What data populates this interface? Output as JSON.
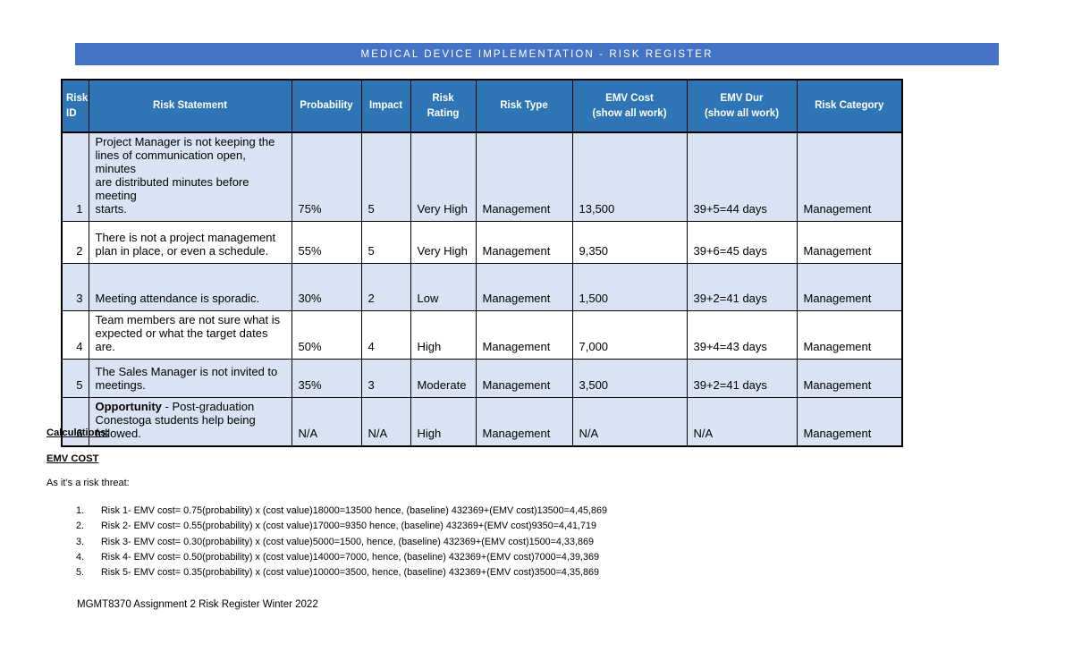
{
  "banner": {
    "title": "MEDICAL DEVICE IMPLEMENTATION - RISK REGISTER"
  },
  "table": {
    "columns": [
      {
        "key": "risk-id",
        "label": "Risk\nID"
      },
      {
        "key": "risk-statement",
        "label": "Risk Statement"
      },
      {
        "key": "probability",
        "label": "Probability"
      },
      {
        "key": "impact",
        "label": "Impact"
      },
      {
        "key": "risk-rating",
        "label": "Risk\nRating"
      },
      {
        "key": "risk-type",
        "label": "Risk Type"
      },
      {
        "key": "emv-cost",
        "label": "EMV Cost\n(show all work)"
      },
      {
        "key": "emv-dur",
        "label": "EMV Dur\n(show all work)"
      },
      {
        "key": "risk-category",
        "label": "Risk Category"
      }
    ],
    "rows": [
      {
        "id": "1",
        "statement": "Project Manager is not keeping the\nlines of communication open, minutes\nare distributed minutes before meeting\nstarts.",
        "statement_bold": "",
        "probability": "75%",
        "impact": "5",
        "rating": "Very High",
        "type": "Management",
        "emv_cost": "13,500",
        "emv_dur": "39+5=44 days",
        "category": "Management"
      },
      {
        "id": "2",
        "statement": "There is not a project management\nplan in place, or even a schedule.",
        "statement_bold": "",
        "probability": "55%",
        "impact": "5",
        "rating": "Very High",
        "type": "Management",
        "emv_cost": "9,350",
        "emv_dur": "39+6=45 days",
        "category": "Management"
      },
      {
        "id": "3",
        "statement": "Meeting attendance is sporadic.",
        "statement_bold": "",
        "probability": "30%",
        "impact": "2",
        "rating": "Low",
        "type": "Management",
        "emv_cost": "1,500",
        "emv_dur": "39+2=41 days",
        "category": "Management"
      },
      {
        "id": "4",
        "statement": "Team members are not sure what is\nexpected or what the target dates are.",
        "statement_bold": "",
        "probability": "50%",
        "impact": "4",
        "rating": "High",
        "type": "Management",
        "emv_cost": "7,000",
        "emv_dur": "39+4=43 days",
        "category": "Management"
      },
      {
        "id": "5",
        "statement": "The Sales Manager is not invited to\nmeetings.",
        "statement_bold": "",
        "probability": "35%",
        "impact": "3",
        "rating": "Moderate",
        "type": "Management",
        "emv_cost": "3,500",
        "emv_dur": "39+2=41 days",
        "category": "Management"
      },
      {
        "id": "6",
        "statement": " - Post-graduation\nConestoga students help being\nfollowed.",
        "statement_bold": "Opportunity",
        "probability": "N/A",
        "impact": "N/A",
        "rating": "High",
        "type": "Management",
        "emv_cost": "N/A",
        "emv_dur": "N/A",
        "category": "Management"
      }
    ]
  },
  "calculations": {
    "heading": "Calculations:",
    "subheading": "EMV COST",
    "intro": "As it’s a risk threat:",
    "items": [
      {
        "num": "1.",
        "text": "Risk 1- EMV cost= 0.75(probability) x (cost value)18000=13500 hence, (baseline) 432369+(EMV cost)13500=4,45,869"
      },
      {
        "num": "2.",
        "text": "Risk 2- EMV cost= 0.55(probability) x (cost value)17000=9350 hence, (baseline) 432369+(EMV cost)9350=4,41,719"
      },
      {
        "num": "3.",
        "text": "Risk 3- EMV cost= 0.30(probability) x (cost value)5000=1500, hence, (baseline) 432369+(EMV cost)1500=4,33,869"
      },
      {
        "num": "4.",
        "text": "Risk 4- EMV cost= 0.50(probability) x (cost value)14000=7000, hence, (baseline) 432369+(EMV cost)7000=4,39,369"
      },
      {
        "num": "5.",
        "text": "Risk 5- EMV cost= 0.35(probability) x (cost value)10000=3500, hence, (baseline) 432369+(EMV cost)3500=4,35,869"
      }
    ]
  },
  "footer": "MGMT8370 Assignment 2 Risk Register Winter 2022",
  "colors": {
    "banner_blue": "#4472C4",
    "header_blue": "#2E75B6",
    "row_shade": "#DAE3F3"
  }
}
